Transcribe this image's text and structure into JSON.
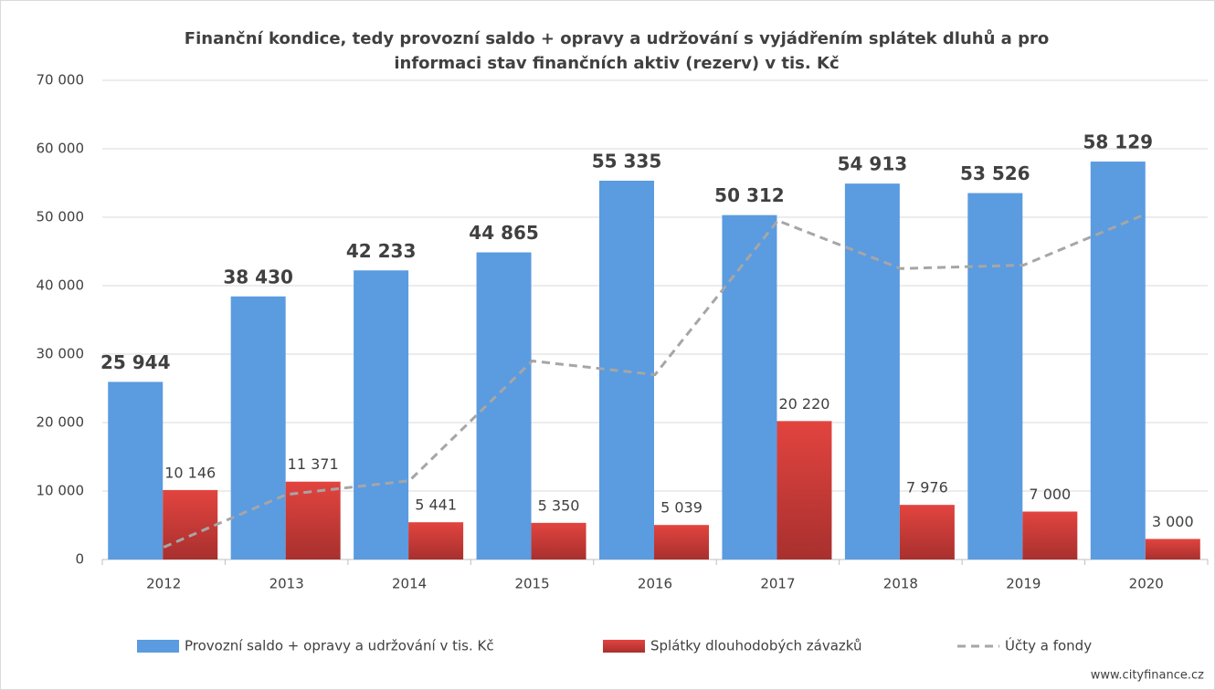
{
  "chart_data": {
    "type": "bar",
    "title": [
      "Finanční kondice, tedy provozní saldo + opravy a udržování s vyjádřením splátek dluhů a pro",
      "informaci stav finančních aktiv (rezerv) v tis. Kč"
    ],
    "categories": [
      "2012",
      "2013",
      "2014",
      "2015",
      "2016",
      "2017",
      "2018",
      "2019",
      "2020"
    ],
    "series": [
      {
        "name": "Provozní saldo + opravy a udržování v tis. Kč",
        "color": "#5b9be0",
        "type": "bar",
        "values": [
          25944,
          38430,
          42233,
          44865,
          55335,
          50312,
          54913,
          53526,
          58129
        ],
        "value_labels": [
          "25 944",
          "38 430",
          "42 233",
          "44 865",
          "55 335",
          "50 312",
          "54 913",
          "53 526",
          "58 129"
        ]
      },
      {
        "name": "Splátky dlouhodobých závazků",
        "color": "#d9403f",
        "type": "bar",
        "values": [
          10146,
          11371,
          5441,
          5350,
          5039,
          20220,
          7976,
          7000,
          3000
        ],
        "value_labels": [
          "10 146",
          "11 371",
          "5 441",
          "5 350",
          "5 039",
          "20 220",
          "7 976",
          "7 000",
          "3 000"
        ]
      },
      {
        "name": "Účty a fondy",
        "color": "#a6a6a6",
        "type": "line",
        "dashed": true,
        "values": [
          1800,
          9500,
          11500,
          29000,
          27000,
          49500,
          42500,
          43000,
          50500
        ]
      }
    ],
    "ylim": [
      0,
      70000
    ],
    "yticks": [
      0,
      {
        "value": 10000,
        "label": "10 000"
      },
      {
        "value": 20000,
        "label": "20 000"
      },
      {
        "value": 30000,
        "label": "30 000"
      },
      {
        "value": 40000,
        "label": "40 000"
      },
      {
        "value": 50000,
        "label": "50 000"
      },
      {
        "value": 60000,
        "label": "60 000"
      },
      {
        "value": 70000,
        "label": "70 000"
      }
    ],
    "grid": true,
    "legend": "bottom",
    "source": "www.cityfinance.cz"
  }
}
